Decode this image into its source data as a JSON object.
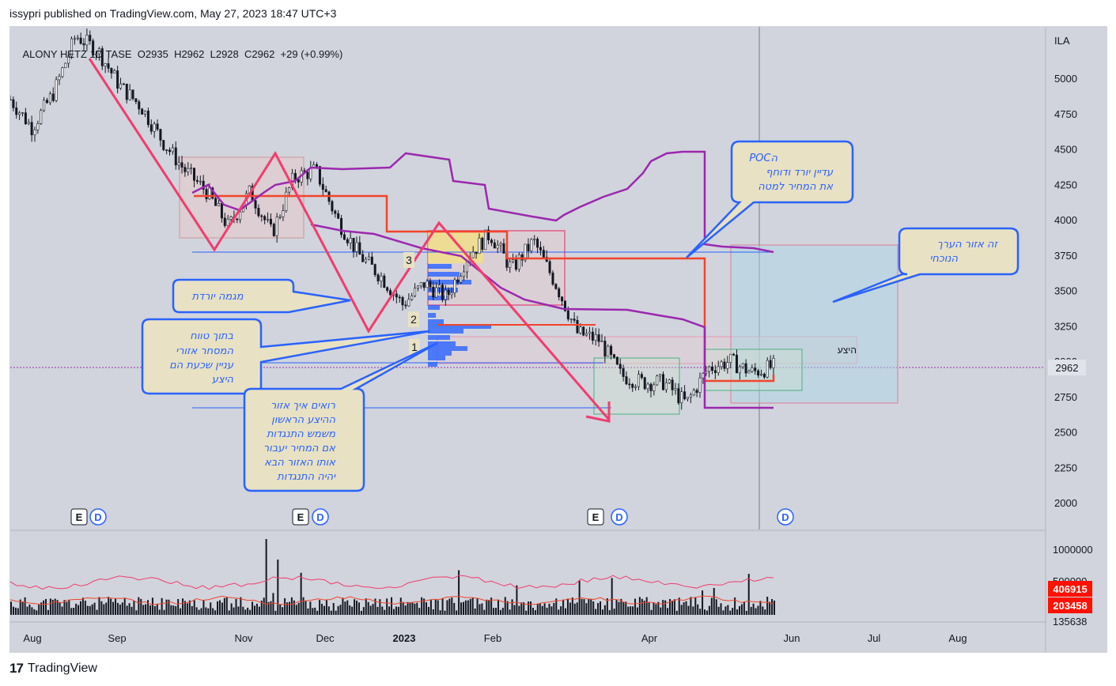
{
  "header": {
    "text": "issypri published on TradingView.com, May 27, 2023 18:47 UTC+3"
  },
  "legend": {
    "symbol": "ALONY HETZ",
    "interval": "1D",
    "exchange": "TASE",
    "open": "O2935",
    "high": "H2962",
    "low": "L2928",
    "close": "C2962",
    "change": "+29 (+0.99%)"
  },
  "price_axis": {
    "currency": "ILA",
    "last_price": "2962"
  },
  "volume_axis": {
    "label_top": "1000000",
    "label_partial": "500000",
    "badge_1": "406915",
    "badge_2": "203458",
    "label_bottom": "135638"
  },
  "annotations": {
    "descending_trend": "מגמה יורדת",
    "within_range": [
      "בתוך טווח",
      "המסחר אזורי",
      "עניין שכעת הם",
      "היצע"
    ],
    "see_how_zone": [
      "רואים איך אזור",
      "ההיצע הראשון",
      "משמש התנגדות",
      "אם המחיר יעבור",
      "אותו האזור הבא",
      "יהיה התנגדות"
    ],
    "poc": [
      "POCה",
      "עדיין יורד ודוחף",
      "את המחיר למטה"
    ],
    "value_zone": [
      "זה אזור הערך",
      "הנוכחי"
    ],
    "supply_label": "היצע",
    "zone_1": "1",
    "zone_2": "2",
    "zone_3": "3"
  },
  "event_markers": {
    "earnings": "E",
    "dividend": "D"
  },
  "footer": {
    "brand": "TradingView",
    "logo": "17"
  },
  "colors": {
    "background": "#d1d4dc",
    "trend_line": "#f23c6e",
    "poc_line": "#f2442b",
    "vwap_line": "#9c27b0",
    "blue_line": "#2962ff",
    "callout_fill": "#e8e1c3",
    "callout_border": "#2962ff",
    "volume_profile": "#2962ff",
    "volume_badge": "#ff1100"
  },
  "chart_data": {
    "type": "candlestick",
    "symbol": "ALONY HETZ",
    "y_ticks": [
      5000,
      4750,
      4500,
      4250,
      4000,
      3750,
      3500,
      3250,
      3000,
      2750,
      2500,
      2250,
      2000
    ],
    "ylim": [
      1830,
      5300
    ],
    "x_ticks": [
      "Aug",
      "Sep",
      "Nov",
      "Dec",
      "2023",
      "Feb",
      "Apr",
      "Jun",
      "Jul",
      "Aug"
    ],
    "price_path": [
      [
        "Aug",
        4850
      ],
      [
        "Aug",
        4650
      ],
      [
        "Aug",
        4900
      ],
      [
        "Sep",
        5300
      ],
      [
        "Sep",
        5200
      ],
      [
        "Sep",
        4950
      ],
      [
        "Sep",
        4800
      ],
      [
        "Sep",
        4550
      ],
      [
        "Sep",
        4350
      ],
      [
        "Nov",
        4200
      ],
      [
        "Nov",
        3950
      ],
      [
        "Nov",
        4200
      ],
      [
        "Nov",
        3900
      ],
      [
        "Nov",
        4300
      ],
      [
        "Nov",
        4350
      ],
      [
        "Dec",
        4000
      ],
      [
        "Dec",
        3750
      ],
      [
        "Dec",
        3600
      ],
      [
        "Dec",
        3400
      ],
      [
        "Dec",
        3550
      ],
      [
        "2023",
        3450
      ],
      [
        "2023",
        3750
      ],
      [
        "2023",
        3900
      ],
      [
        "Feb",
        3650
      ],
      [
        "Feb",
        3850
      ],
      [
        "Feb",
        3550
      ],
      [
        "Feb",
        3200
      ],
      [
        "Feb",
        3150
      ],
      [
        "Apr",
        2900
      ],
      [
        "Apr",
        2850
      ],
      [
        "Apr",
        2850
      ],
      [
        "Apr",
        2700
      ],
      [
        "Apr",
        2950
      ],
      [
        "Apr",
        3000
      ],
      [
        "May",
        2920
      ],
      [
        "May",
        2962
      ]
    ],
    "levels": {
      "upper_blue": 3780,
      "middle_blue": 3000,
      "lower_blue": 2690,
      "last": 2962
    },
    "volume": {
      "max_label": 1000000,
      "avg_1": 406915,
      "avg_2": 203458
    }
  }
}
